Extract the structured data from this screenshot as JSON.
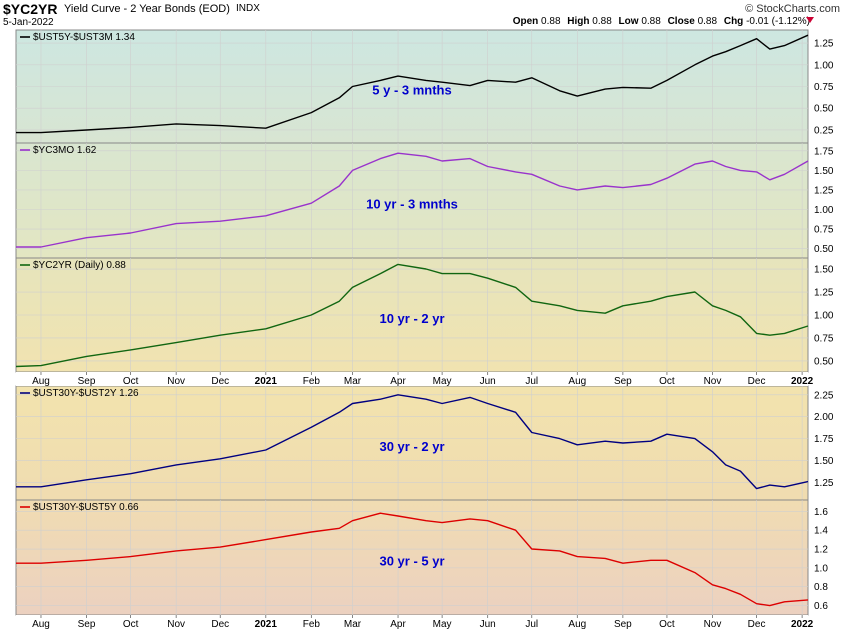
{
  "header": {
    "symbol": "$YC2YR",
    "description": "Yield Curve - 2 Year Bonds (EOD)",
    "exchange": "INDX",
    "date": "5-Jan-2022",
    "brand": "© StockCharts.com",
    "quote": {
      "open_label": "Open",
      "open": "0.88",
      "high_label": "High",
      "high": "0.88",
      "low_label": "Low",
      "low": "0.88",
      "close_label": "Close",
      "close": "0.88",
      "chg_label": "Chg",
      "chg": "-0.01 (-1.12%)"
    }
  },
  "colors": {
    "black_series": "#000000",
    "purple_series": "#9933cc",
    "green_series": "#116611",
    "navy_series": "#000080",
    "red_series": "#dd0000",
    "annotation": "#0000cc",
    "down_arrow": "#cc0033"
  },
  "x_axis": {
    "ticks": [
      {
        "label": "Aug",
        "bold": false
      },
      {
        "label": "Sep",
        "bold": false
      },
      {
        "label": "Oct",
        "bold": false
      },
      {
        "label": "Nov",
        "bold": false
      },
      {
        "label": "Dec",
        "bold": false
      },
      {
        "label": "2021",
        "bold": true
      },
      {
        "label": "Feb",
        "bold": false
      },
      {
        "label": "Mar",
        "bold": false
      },
      {
        "label": "Apr",
        "bold": false
      },
      {
        "label": "May",
        "bold": false
      },
      {
        "label": "Jun",
        "bold": false
      },
      {
        "label": "Jul",
        "bold": false
      },
      {
        "label": "Aug",
        "bold": false
      },
      {
        "label": "Sep",
        "bold": false
      },
      {
        "label": "Oct",
        "bold": false
      },
      {
        "label": "Nov",
        "bold": false
      },
      {
        "label": "Dec",
        "bold": false
      },
      {
        "label": "2022",
        "bold": true
      }
    ]
  },
  "chart_data": [
    {
      "type": "line",
      "series_label": "$UST5Y-$UST3M 1.34",
      "annotation": "5 y - 3 mnths",
      "ylim": [
        0.1,
        1.4
      ],
      "yticks": [
        "0.25",
        "0.50",
        "0.75",
        "1.00",
        "1.25"
      ],
      "x": [
        "2020-07-15",
        "2020-08-01",
        "2020-09-01",
        "2020-10-01",
        "2020-11-01",
        "2020-12-01",
        "2021-01-01",
        "2021-02-01",
        "2021-02-20",
        "2021-03-01",
        "2021-03-20",
        "2021-04-01",
        "2021-04-20",
        "2021-05-01",
        "2021-05-20",
        "2021-06-01",
        "2021-06-20",
        "2021-07-01",
        "2021-07-20",
        "2021-08-01",
        "2021-08-20",
        "2021-09-01",
        "2021-09-20",
        "2021-10-01",
        "2021-10-20",
        "2021-11-01",
        "2021-11-10",
        "2021-11-20",
        "2021-12-01",
        "2021-12-10",
        "2021-12-20",
        "2022-01-05"
      ],
      "values": [
        0.22,
        0.22,
        0.25,
        0.28,
        0.32,
        0.3,
        0.27,
        0.45,
        0.62,
        0.75,
        0.82,
        0.87,
        0.82,
        0.8,
        0.76,
        0.82,
        0.8,
        0.85,
        0.7,
        0.64,
        0.72,
        0.74,
        0.73,
        0.82,
        1.0,
        1.1,
        1.15,
        1.22,
        1.3,
        1.18,
        1.22,
        1.34
      ]
    },
    {
      "type": "line",
      "series_label": "$YC3MO 1.62",
      "annotation": "10 yr - 3 mnths",
      "ylim": [
        0.38,
        1.85
      ],
      "yticks": [
        "0.50",
        "0.75",
        "1.00",
        "1.25",
        "1.50",
        "1.75"
      ],
      "x": [
        "2020-07-15",
        "2020-08-01",
        "2020-09-01",
        "2020-10-01",
        "2020-11-01",
        "2020-12-01",
        "2021-01-01",
        "2021-02-01",
        "2021-02-20",
        "2021-03-01",
        "2021-03-20",
        "2021-04-01",
        "2021-04-20",
        "2021-05-01",
        "2021-05-20",
        "2021-06-01",
        "2021-06-20",
        "2021-07-01",
        "2021-07-20",
        "2021-08-01",
        "2021-08-20",
        "2021-09-01",
        "2021-09-20",
        "2021-10-01",
        "2021-10-20",
        "2021-11-01",
        "2021-11-10",
        "2021-11-20",
        "2021-12-01",
        "2021-12-10",
        "2021-12-20",
        "2022-01-05"
      ],
      "values": [
        0.52,
        0.52,
        0.64,
        0.7,
        0.82,
        0.85,
        0.92,
        1.08,
        1.3,
        1.5,
        1.65,
        1.72,
        1.68,
        1.62,
        1.65,
        1.55,
        1.48,
        1.45,
        1.3,
        1.25,
        1.3,
        1.28,
        1.32,
        1.4,
        1.58,
        1.62,
        1.55,
        1.5,
        1.48,
        1.38,
        1.45,
        1.62
      ]
    },
    {
      "type": "line",
      "series_label": "$YC2YR (Daily) 0.88",
      "annotation": "10 yr - 2 yr",
      "ylim": [
        0.38,
        1.62
      ],
      "yticks": [
        "0.50",
        "0.75",
        "1.00",
        "1.25",
        "1.50"
      ],
      "x": [
        "2020-07-15",
        "2020-08-01",
        "2020-09-01",
        "2020-10-01",
        "2020-11-01",
        "2020-12-01",
        "2021-01-01",
        "2021-02-01",
        "2021-02-20",
        "2021-03-01",
        "2021-03-20",
        "2021-04-01",
        "2021-04-20",
        "2021-05-01",
        "2021-05-20",
        "2021-06-01",
        "2021-06-20",
        "2021-07-01",
        "2021-07-20",
        "2021-08-01",
        "2021-08-20",
        "2021-09-01",
        "2021-09-20",
        "2021-10-01",
        "2021-10-20",
        "2021-11-01",
        "2021-11-10",
        "2021-11-20",
        "2021-12-01",
        "2021-12-10",
        "2021-12-20",
        "2022-01-05"
      ],
      "values": [
        0.44,
        0.45,
        0.55,
        0.62,
        0.7,
        0.78,
        0.85,
        1.0,
        1.15,
        1.3,
        1.45,
        1.55,
        1.5,
        1.45,
        1.45,
        1.4,
        1.3,
        1.15,
        1.1,
        1.05,
        1.02,
        1.1,
        1.15,
        1.2,
        1.25,
        1.1,
        1.05,
        0.98,
        0.8,
        0.78,
        0.8,
        0.88
      ]
    },
    {
      "type": "line",
      "series_label": "$UST30Y-$UST2Y 1.26",
      "annotation": "30 yr - 2 yr",
      "ylim": [
        1.05,
        2.35
      ],
      "yticks": [
        "1.25",
        "1.50",
        "1.75",
        "2.00",
        "2.25"
      ],
      "x": [
        "2020-07-15",
        "2020-08-01",
        "2020-09-01",
        "2020-10-01",
        "2020-11-01",
        "2020-12-01",
        "2021-01-01",
        "2021-02-01",
        "2021-02-20",
        "2021-03-01",
        "2021-03-20",
        "2021-04-01",
        "2021-04-20",
        "2021-05-01",
        "2021-05-20",
        "2021-06-01",
        "2021-06-20",
        "2021-07-01",
        "2021-07-20",
        "2021-08-01",
        "2021-08-20",
        "2021-09-01",
        "2021-09-20",
        "2021-10-01",
        "2021-10-20",
        "2021-11-01",
        "2021-11-10",
        "2021-11-20",
        "2021-12-01",
        "2021-12-10",
        "2021-12-20",
        "2022-01-05"
      ],
      "values": [
        1.2,
        1.2,
        1.28,
        1.35,
        1.45,
        1.52,
        1.62,
        1.88,
        2.05,
        2.15,
        2.2,
        2.25,
        2.2,
        2.15,
        2.22,
        2.15,
        2.05,
        1.82,
        1.75,
        1.68,
        1.72,
        1.7,
        1.72,
        1.8,
        1.75,
        1.6,
        1.45,
        1.38,
        1.18,
        1.22,
        1.2,
        1.26
      ]
    },
    {
      "type": "line",
      "series_label": "$UST30Y-$UST5Y 0.66",
      "annotation": "30 yr - 5 yr",
      "ylim": [
        0.5,
        1.72
      ],
      "yticks": [
        "0.6",
        "0.8",
        "1.0",
        "1.2",
        "1.4",
        "1.6"
      ],
      "x": [
        "2020-07-15",
        "2020-08-01",
        "2020-09-01",
        "2020-10-01",
        "2020-11-01",
        "2020-12-01",
        "2021-01-01",
        "2021-02-01",
        "2021-02-20",
        "2021-03-01",
        "2021-03-20",
        "2021-04-01",
        "2021-04-20",
        "2021-05-01",
        "2021-05-20",
        "2021-06-01",
        "2021-06-20",
        "2021-07-01",
        "2021-07-20",
        "2021-08-01",
        "2021-08-20",
        "2021-09-01",
        "2021-09-20",
        "2021-10-01",
        "2021-10-20",
        "2021-11-01",
        "2021-11-10",
        "2021-11-20",
        "2021-12-01",
        "2021-12-10",
        "2021-12-20",
        "2022-01-05"
      ],
      "values": [
        1.05,
        1.05,
        1.08,
        1.12,
        1.18,
        1.22,
        1.3,
        1.38,
        1.42,
        1.5,
        1.58,
        1.55,
        1.5,
        1.48,
        1.52,
        1.5,
        1.4,
        1.2,
        1.18,
        1.12,
        1.1,
        1.05,
        1.08,
        1.08,
        0.95,
        0.82,
        0.78,
        0.72,
        0.62,
        0.6,
        0.64,
        0.66
      ]
    }
  ]
}
